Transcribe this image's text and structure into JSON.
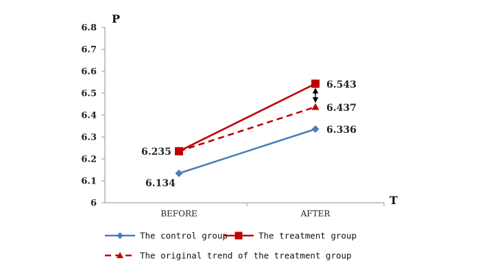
{
  "chart_data": {
    "type": "line",
    "title": "",
    "xlabel": "T",
    "ylabel": "P",
    "categories": [
      "BEFORE",
      "AFTER"
    ],
    "ylim": [
      6,
      6.8
    ],
    "yticks": [
      "6",
      "6.1",
      "6.2",
      "6.3",
      "6.4",
      "6.5",
      "6.6",
      "6.7",
      "6.8"
    ],
    "grid": false,
    "legend_position": "bottom",
    "series": [
      {
        "name": "The control group",
        "values": [
          6.134,
          6.336
        ],
        "labels": [
          "6.134",
          "6.336"
        ],
        "color": "#4a7ebb",
        "marker": "diamond",
        "dash": false
      },
      {
        "name": "The treatment group",
        "values": [
          6.235,
          6.543
        ],
        "labels": [
          "6.235",
          "6.543"
        ],
        "color": "#c00000",
        "marker": "square",
        "dash": false
      },
      {
        "name": "The original trend of the treatment group",
        "values": [
          6.235,
          6.437
        ],
        "labels": [
          "",
          "6.437"
        ],
        "color": "#c00000",
        "marker": "triangle",
        "dash": true
      }
    ],
    "annotation": {
      "type": "double-arrow",
      "category": "AFTER",
      "from": 6.437,
      "to": 6.543
    }
  }
}
